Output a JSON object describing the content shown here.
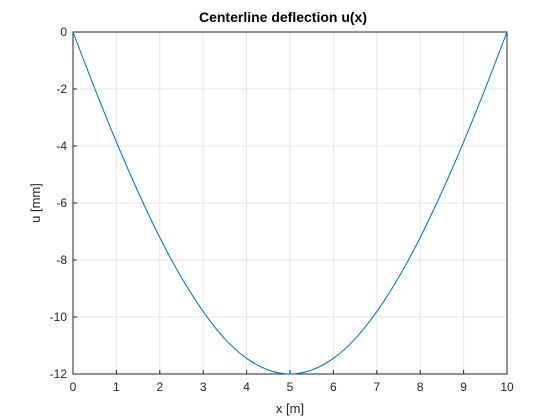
{
  "chart_data": {
    "type": "line",
    "title": "Centerline deflection u(x)",
    "xlabel": "x [m]",
    "ylabel": "u [mm]",
    "xlim": [
      0,
      10
    ],
    "ylim": [
      -12,
      0
    ],
    "xticks": [
      0,
      1,
      2,
      3,
      4,
      5,
      6,
      7,
      8,
      9,
      10
    ],
    "yticks": [
      0,
      -2,
      -4,
      -6,
      -8,
      -10,
      -12
    ],
    "grid": true,
    "series": [
      {
        "color": "#0072bd",
        "x": [
          0,
          0.5,
          1,
          1.5,
          2,
          2.5,
          3,
          3.5,
          4,
          4.5,
          5,
          5.5,
          6,
          6.5,
          7,
          7.5,
          8,
          8.5,
          9,
          9.5,
          10
        ],
        "y": [
          0,
          -1.98,
          -3.86,
          -5.61,
          -7.21,
          -8.62,
          -9.81,
          -10.77,
          -11.45,
          -11.86,
          -12.0,
          -11.86,
          -11.45,
          -10.77,
          -9.81,
          -8.62,
          -7.21,
          -5.61,
          -3.86,
          -1.98,
          0
        ]
      }
    ]
  },
  "colors": {
    "axes": "#262626",
    "grid": "#e6e6e6",
    "line": "#0072bd"
  }
}
